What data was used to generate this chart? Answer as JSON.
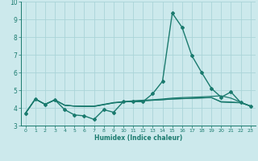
{
  "xlabel": "Humidex (Indice chaleur)",
  "xlim": [
    -0.5,
    23.5
  ],
  "ylim": [
    3,
    10
  ],
  "yticks": [
    3,
    4,
    5,
    6,
    7,
    8,
    9,
    10
  ],
  "xticks": [
    0,
    1,
    2,
    3,
    4,
    5,
    6,
    7,
    8,
    9,
    10,
    11,
    12,
    13,
    14,
    15,
    16,
    17,
    18,
    19,
    20,
    21,
    22,
    23
  ],
  "background_color": "#cce9ec",
  "grid_color": "#aad4d8",
  "line_color": "#1a7a6e",
  "lines": [
    {
      "x": [
        0,
        1,
        2,
        3,
        4,
        5,
        6,
        7,
        8,
        9,
        10,
        11,
        12,
        13,
        14,
        15,
        16,
        17,
        18,
        19,
        20,
        21,
        22,
        23
      ],
      "y": [
        3.7,
        4.5,
        4.2,
        4.45,
        3.9,
        3.6,
        3.55,
        3.35,
        3.9,
        3.75,
        4.35,
        4.35,
        4.35,
        4.8,
        5.5,
        9.35,
        8.55,
        6.95,
        6.0,
        5.1,
        4.6,
        4.9,
        4.3,
        4.1
      ],
      "marker": "D",
      "markersize": 2.0,
      "linewidth": 1.0
    },
    {
      "x": [
        0,
        1,
        2,
        3,
        4,
        5,
        6,
        7,
        8,
        9,
        10,
        11,
        12,
        13,
        14,
        15,
        16,
        17,
        18,
        19,
        20,
        21,
        22,
        23
      ],
      "y": [
        3.7,
        4.5,
        4.2,
        4.45,
        4.15,
        4.1,
        4.1,
        4.1,
        4.2,
        4.3,
        4.35,
        4.4,
        4.43,
        4.46,
        4.5,
        4.55,
        4.58,
        4.6,
        4.62,
        4.65,
        4.68,
        4.55,
        4.32,
        4.1
      ],
      "marker": null,
      "linewidth": 0.9
    },
    {
      "x": [
        0,
        1,
        2,
        3,
        4,
        5,
        6,
        7,
        8,
        9,
        10,
        11,
        12,
        13,
        14,
        15,
        16,
        17,
        18,
        19,
        20,
        21,
        22,
        23
      ],
      "y": [
        3.7,
        4.5,
        4.2,
        4.45,
        4.15,
        4.1,
        4.08,
        4.08,
        4.18,
        4.28,
        4.33,
        4.37,
        4.4,
        4.43,
        4.46,
        4.5,
        4.52,
        4.54,
        4.56,
        4.58,
        4.35,
        4.33,
        4.3,
        4.1
      ],
      "marker": null,
      "linewidth": 0.9
    },
    {
      "x": [
        0,
        1,
        2,
        3,
        4,
        5,
        6,
        7,
        8,
        9,
        10,
        11,
        12,
        13,
        14,
        15,
        16,
        17,
        18,
        19,
        20,
        21,
        22,
        23
      ],
      "y": [
        3.7,
        4.5,
        4.2,
        4.45,
        4.15,
        4.1,
        4.08,
        4.08,
        4.18,
        4.28,
        4.33,
        4.37,
        4.4,
        4.43,
        4.46,
        4.5,
        4.52,
        4.54,
        4.56,
        4.58,
        4.32,
        4.3,
        4.28,
        4.1
      ],
      "marker": null,
      "linewidth": 0.7
    }
  ]
}
